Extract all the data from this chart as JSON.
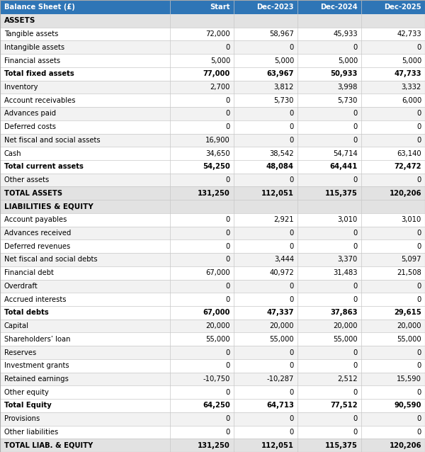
{
  "title": "Balance Sheet (£)",
  "columns": [
    "Balance Sheet (£)",
    "Start",
    "Dec-2023",
    "Dec-2024",
    "Dec-2025"
  ],
  "header_bg": "#2E75B6",
  "header_fg": "#FFFFFF",
  "section_bg": "#E2E2E2",
  "section_fg": "#000000",
  "total_bg": "#FFFFFF",
  "total_fg": "#000000",
  "normal_fg": "#000000",
  "white_bg": "#FFFFFF",
  "alt_bg": "#F2F2F2",
  "grandtotal_bg": "#E2E2E2",
  "rows": [
    {
      "label": "ASSETS",
      "values": [
        "",
        "",
        "",
        ""
      ],
      "type": "section"
    },
    {
      "label": "Tangible assets",
      "values": [
        "72,000",
        "58,967",
        "45,933",
        "42,733"
      ],
      "type": "normal"
    },
    {
      "label": "Intangible assets",
      "values": [
        "0",
        "0",
        "0",
        "0"
      ],
      "type": "normal"
    },
    {
      "label": "Financial assets",
      "values": [
        "5,000",
        "5,000",
        "5,000",
        "5,000"
      ],
      "type": "normal"
    },
    {
      "label": "Total fixed assets",
      "values": [
        "77,000",
        "63,967",
        "50,933",
        "47,733"
      ],
      "type": "total"
    },
    {
      "label": "Inventory",
      "values": [
        "2,700",
        "3,812",
        "3,998",
        "3,332"
      ],
      "type": "normal"
    },
    {
      "label": "Account receivables",
      "values": [
        "0",
        "5,730",
        "5,730",
        "6,000"
      ],
      "type": "normal"
    },
    {
      "label": "Advances paid",
      "values": [
        "0",
        "0",
        "0",
        "0"
      ],
      "type": "normal"
    },
    {
      "label": "Deferred costs",
      "values": [
        "0",
        "0",
        "0",
        "0"
      ],
      "type": "normal"
    },
    {
      "label": "Net fiscal and social assets",
      "values": [
        "16,900",
        "0",
        "0",
        "0"
      ],
      "type": "normal"
    },
    {
      "label": "Cash",
      "values": [
        "34,650",
        "38,542",
        "54,714",
        "63,140"
      ],
      "type": "normal"
    },
    {
      "label": "Total current assets",
      "values": [
        "54,250",
        "48,084",
        "64,441",
        "72,472"
      ],
      "type": "total"
    },
    {
      "label": "Other assets",
      "values": [
        "0",
        "0",
        "0",
        "0"
      ],
      "type": "normal"
    },
    {
      "label": "TOTAL ASSETS",
      "values": [
        "131,250",
        "112,051",
        "115,375",
        "120,206"
      ],
      "type": "grandtotal"
    },
    {
      "label": "LIABILITIES & EQUITY",
      "values": [
        "",
        "",
        "",
        ""
      ],
      "type": "section"
    },
    {
      "label": "Account payables",
      "values": [
        "0",
        "2,921",
        "3,010",
        "3,010"
      ],
      "type": "normal"
    },
    {
      "label": "Advances received",
      "values": [
        "0",
        "0",
        "0",
        "0"
      ],
      "type": "normal"
    },
    {
      "label": "Deferred revenues",
      "values": [
        "0",
        "0",
        "0",
        "0"
      ],
      "type": "normal"
    },
    {
      "label": "Net fiscal and social debts",
      "values": [
        "0",
        "3,444",
        "3,370",
        "5,097"
      ],
      "type": "normal"
    },
    {
      "label": "Financial debt",
      "values": [
        "67,000",
        "40,972",
        "31,483",
        "21,508"
      ],
      "type": "normal"
    },
    {
      "label": "Overdraft",
      "values": [
        "0",
        "0",
        "0",
        "0"
      ],
      "type": "normal"
    },
    {
      "label": "Accrued interests",
      "values": [
        "0",
        "0",
        "0",
        "0"
      ],
      "type": "normal"
    },
    {
      "label": "Total debts",
      "values": [
        "67,000",
        "47,337",
        "37,863",
        "29,615"
      ],
      "type": "total"
    },
    {
      "label": "Capital",
      "values": [
        "20,000",
        "20,000",
        "20,000",
        "20,000"
      ],
      "type": "normal"
    },
    {
      "label": "Shareholders’ loan",
      "values": [
        "55,000",
        "55,000",
        "55,000",
        "55,000"
      ],
      "type": "normal"
    },
    {
      "label": "Reserves",
      "values": [
        "0",
        "0",
        "0",
        "0"
      ],
      "type": "normal"
    },
    {
      "label": "Investment grants",
      "values": [
        "0",
        "0",
        "0",
        "0"
      ],
      "type": "normal"
    },
    {
      "label": "Retained earnings",
      "values": [
        "-10,750",
        "-10,287",
        "2,512",
        "15,590"
      ],
      "type": "normal"
    },
    {
      "label": "Other equity",
      "values": [
        "0",
        "0",
        "0",
        "0"
      ],
      "type": "normal"
    },
    {
      "label": "Total Equity",
      "values": [
        "64,250",
        "64,713",
        "77,512",
        "90,590"
      ],
      "type": "total"
    },
    {
      "label": "Provisions",
      "values": [
        "0",
        "0",
        "0",
        "0"
      ],
      "type": "normal"
    },
    {
      "label": "Other liabilities",
      "values": [
        "0",
        "0",
        "0",
        "0"
      ],
      "type": "normal"
    },
    {
      "label": "TOTAL LIAB. & EQUITY",
      "values": [
        "131,250",
        "112,051",
        "115,375",
        "120,206"
      ],
      "type": "grandtotal"
    }
  ]
}
